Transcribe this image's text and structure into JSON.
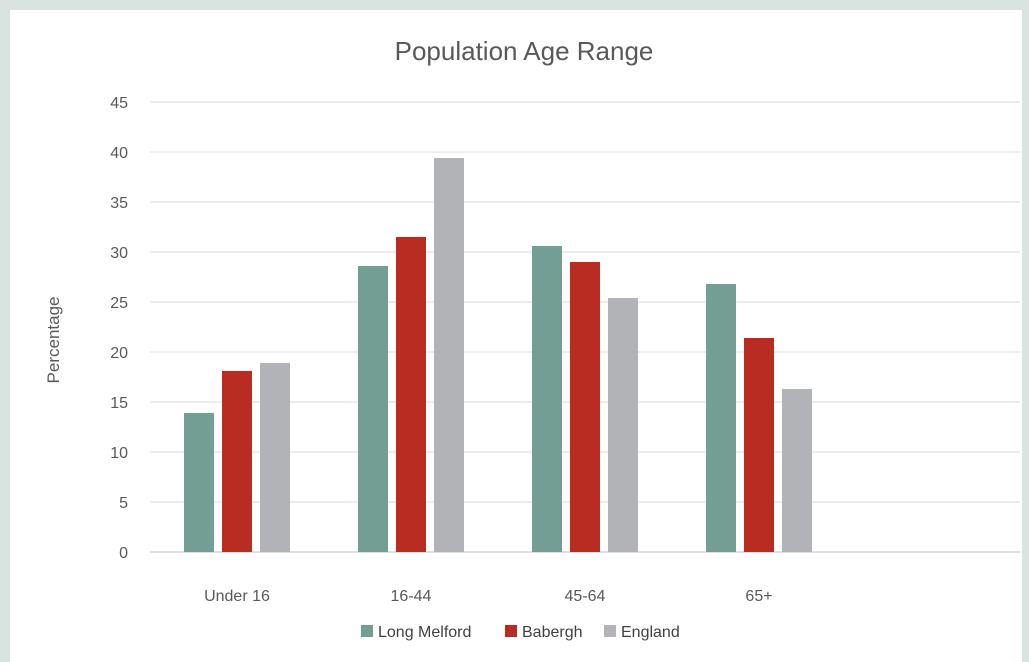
{
  "chart_data": {
    "type": "bar",
    "title": "Population Age Range",
    "xlabel": "",
    "ylabel": "Percentage",
    "categories": [
      "Under 16",
      "16-44",
      "45-64",
      "65+",
      ""
    ],
    "series": [
      {
        "name": "Long Melford",
        "color": "#729e94",
        "values": [
          13.9,
          28.6,
          30.6,
          26.8,
          null
        ]
      },
      {
        "name": "Babergh",
        "color": "#b92c22",
        "values": [
          18.1,
          31.5,
          29.0,
          21.4,
          null
        ]
      },
      {
        "name": "England",
        "color": "#b2b3b6",
        "values": [
          18.9,
          39.4,
          25.4,
          16.3,
          null
        ]
      }
    ],
    "ylim": [
      0,
      45
    ],
    "yticks": [
      0,
      5,
      10,
      15,
      20,
      25,
      30,
      35,
      40,
      45
    ],
    "grid": true,
    "legend": "bottom"
  }
}
